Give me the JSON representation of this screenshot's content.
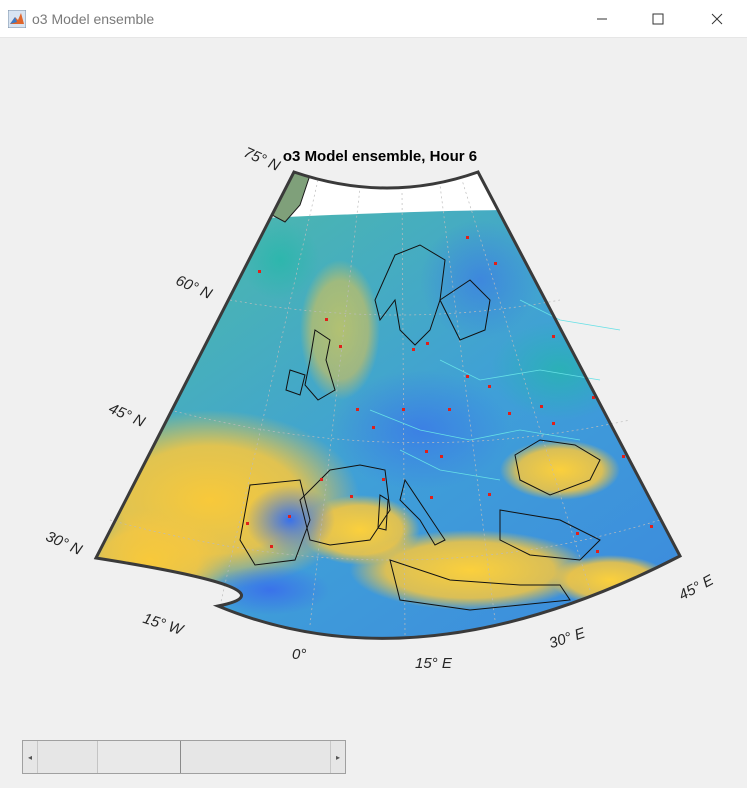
{
  "window": {
    "title": "o3 Model ensemble",
    "icon": "matlab-icon",
    "controls": [
      "minimize-icon",
      "maximize-icon",
      "close-icon"
    ]
  },
  "map": {
    "title": "o3 Model ensemble, Hour 6",
    "lat_labels": [
      "75° N",
      "60° N",
      "45° N",
      "30° N"
    ],
    "lon_labels": [
      "15° W",
      "0°",
      "15° E",
      "30° E",
      "45° E"
    ],
    "colors": {
      "ocean_high": "#f7c63b",
      "mid": "#39b7a6",
      "low": "#3f7fe3",
      "land_shade": "#7aa67a",
      "rivers": "#66e0e6",
      "stations": "#e0201a"
    }
  },
  "slider": {
    "value_fraction": 0.29,
    "left_arrow": "◂",
    "right_arrow": "▸"
  }
}
